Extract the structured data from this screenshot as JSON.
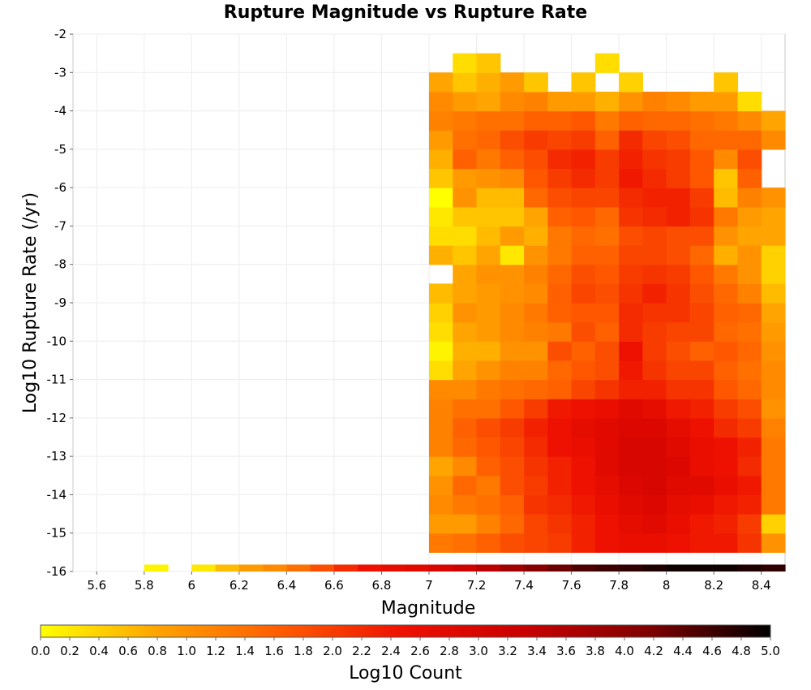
{
  "chart_data": {
    "type": "heatmap",
    "title": "Rupture Magnitude vs Rupture Rate",
    "xlabel": "Magnitude",
    "ylabel": "Log10 Rupture Rate (/yr)",
    "xlim": [
      5.5,
      8.5
    ],
    "ylim": [
      -16,
      -2
    ],
    "x_ticks": [
      "5.6",
      "5.8",
      "6",
      "6.2",
      "6.4",
      "6.6",
      "6.8",
      "7",
      "7.2",
      "7.4",
      "7.6",
      "7.8",
      "8",
      "8.2",
      "8.4"
    ],
    "y_ticks": [
      "-2",
      "-3",
      "-4",
      "-5",
      "-6",
      "-7",
      "-8",
      "-9",
      "-10",
      "-11",
      "-12",
      "-13",
      "-14",
      "-15",
      "-16"
    ],
    "colorbar": {
      "label": "Log10 Count",
      "min": 0.0,
      "max": 5.0,
      "ticks": [
        "0.0",
        "0.2",
        "0.4",
        "0.6",
        "0.8",
        "1.0",
        "1.2",
        "1.4",
        "1.6",
        "1.8",
        "2.0",
        "2.2",
        "2.4",
        "2.6",
        "2.8",
        "3.0",
        "3.2",
        "3.4",
        "3.6",
        "3.8",
        "4.0",
        "4.2",
        "4.4",
        "4.6",
        "4.8",
        "5.0"
      ],
      "colors": [
        "#ffff00",
        "#ffa000",
        "#ff5a00",
        "#ee1000",
        "#c80000",
        "#800000",
        "#000000"
      ]
    },
    "x_bins": [
      7.0,
      7.1,
      7.2,
      7.3,
      7.4,
      7.5,
      7.6,
      7.7,
      7.8,
      7.9,
      8.0,
      8.1,
      8.2,
      8.3,
      8.4
    ],
    "y_bin_width": 0.5,
    "bottom_row": {
      "x": [
        5.8,
        6.0,
        6.1,
        6.2,
        6.3,
        6.4,
        6.5,
        6.6,
        6.7,
        6.8,
        6.9,
        7.0,
        7.1,
        7.2,
        7.3,
        7.4,
        7.5,
        7.6,
        7.7,
        7.8,
        7.9,
        8.0,
        8.1,
        8.2,
        8.3,
        8.4
      ],
      "y": -16,
      "values": [
        0.1,
        0.2,
        0.6,
        0.9,
        1.1,
        1.4,
        1.8,
        2.2,
        2.5,
        2.7,
        2.8,
        3.0,
        3.2,
        3.5,
        3.8,
        4.1,
        4.3,
        4.5,
        4.6,
        4.7,
        4.8,
        4.9,
        4.9,
        4.9,
        4.8,
        4.7
      ]
    },
    "cells": [
      {
        "x": 7.0,
        "y_values": [
          -15.5,
          -15,
          -14.5,
          -14,
          -13.5,
          -13,
          -12.5,
          -12,
          -11.5,
          -11,
          -10.5,
          -10,
          -9.5,
          -9,
          -8,
          -7.5,
          -7,
          -6.5,
          -6,
          -5.5,
          -5,
          -4.5,
          -4,
          -3.5
        ],
        "values": [
          1.3,
          0.9,
          1.1,
          1.0,
          0.8,
          1.2,
          1.2,
          1.2,
          1.1,
          0.3,
          0.1,
          0.3,
          0.4,
          0.6,
          0.7,
          0.3,
          0.2,
          0.0,
          0.5,
          0.7,
          0.9,
          1.2,
          1.1,
          0.8
        ]
      },
      {
        "x": 7.1,
        "y_values": [
          -15.5,
          -15,
          -14.5,
          -14,
          -13.5,
          -13,
          -12.5,
          -12,
          -11.5,
          -11,
          -10.5,
          -10,
          -9.5,
          -9,
          -8.5,
          -8,
          -7.5,
          -7,
          -6.5,
          -6,
          -5.5,
          -5,
          -4.5,
          -4,
          -3.5,
          -3
        ],
        "values": [
          1.4,
          0.9,
          1.3,
          1.5,
          1.1,
          1.5,
          1.6,
          1.4,
          1.1,
          0.8,
          0.7,
          0.8,
          1.0,
          0.8,
          0.8,
          0.5,
          0.3,
          0.5,
          1.0,
          0.9,
          1.6,
          1.4,
          1.3,
          0.9,
          0.5,
          0.3
        ]
      },
      {
        "x": 7.2,
        "y_values": [
          -15.5,
          -15,
          -14.5,
          -14,
          -13.5,
          -13,
          -12.5,
          -12,
          -11.5,
          -11,
          -10.5,
          -10,
          -9.5,
          -9,
          -8.5,
          -8,
          -7.5,
          -7,
          -6.5,
          -6,
          -5.5,
          -5,
          -4.5,
          -4,
          -3.5,
          -3
        ],
        "values": [
          1.6,
          1.2,
          1.4,
          1.3,
          1.6,
          1.7,
          1.8,
          1.4,
          1.3,
          1.0,
          0.7,
          0.9,
          0.9,
          0.9,
          1.0,
          0.8,
          0.6,
          0.5,
          0.6,
          1.0,
          1.3,
          1.5,
          1.4,
          0.8,
          0.7,
          0.5
        ]
      },
      {
        "x": 7.3,
        "y_values": [
          -15.5,
          -15,
          -14.5,
          -14,
          -13.5,
          -13,
          -12.5,
          -12,
          -11.5,
          -11,
          -10.5,
          -10,
          -9.5,
          -9,
          -8.5,
          -8,
          -7.5,
          -7,
          -6.5,
          -6,
          -5.5,
          -5,
          -4.5,
          -4,
          -3.5
        ],
        "values": [
          1.8,
          1.5,
          1.6,
          1.8,
          1.8,
          1.9,
          2.0,
          1.7,
          1.4,
          1.2,
          1.0,
          1.1,
          1.1,
          1.0,
          1.0,
          0.2,
          0.9,
          0.5,
          0.6,
          1.1,
          1.6,
          1.8,
          1.4,
          1.1,
          0.9
        ]
      },
      {
        "x": 7.4,
        "y_values": [
          -15.5,
          -15,
          -14.5,
          -14,
          -13.5,
          -13,
          -12.5,
          -12,
          -11.5,
          -11,
          -10.5,
          -10,
          -9.5,
          -9,
          -8.5,
          -8,
          -7.5,
          -7,
          -6.5,
          -6,
          -5.5,
          -5,
          -4.5,
          -4,
          -3.5
        ],
        "values": [
          1.9,
          1.9,
          2.1,
          2.0,
          2.1,
          2.2,
          2.3,
          2.0,
          1.5,
          1.2,
          1.0,
          1.2,
          1.3,
          1.1,
          1.2,
          1.0,
          0.7,
          0.8,
          1.5,
          1.7,
          1.8,
          2.0,
          1.6,
          1.2,
          0.5
        ]
      },
      {
        "x": 7.5,
        "y_values": [
          -15.5,
          -15,
          -14.5,
          -14,
          -13.5,
          -13,
          -12.5,
          -12,
          -11.5,
          -11,
          -10.5,
          -10,
          -9.5,
          -9,
          -8.5,
          -8,
          -7.5,
          -7,
          -6.5,
          -6,
          -5.5,
          -5,
          -4.5,
          -4
        ],
        "values": [
          2.0,
          2.1,
          2.2,
          2.3,
          2.3,
          2.5,
          2.5,
          2.4,
          1.6,
          1.5,
          1.8,
          1.3,
          1.6,
          1.6,
          1.5,
          1.3,
          1.3,
          1.6,
          1.8,
          2.0,
          2.2,
          1.9,
          1.6,
          0.9
        ]
      },
      {
        "x": 7.6,
        "y_values": [
          -15.5,
          -15,
          -14.5,
          -14,
          -13.5,
          -13,
          -12.5,
          -12,
          -11.5,
          -11,
          -10.5,
          -10,
          -9.5,
          -9,
          -8.5,
          -8,
          -7.5,
          -7,
          -6.5,
          -6,
          -5.5,
          -5,
          -4.5,
          -4,
          -3.5
        ],
        "values": [
          2.3,
          2.3,
          2.4,
          2.5,
          2.5,
          2.6,
          2.7,
          2.5,
          1.9,
          1.7,
          1.6,
          1.8,
          1.7,
          1.9,
          1.8,
          1.6,
          1.5,
          1.7,
          1.9,
          2.2,
          2.3,
          2.0,
          1.7,
          0.9,
          0.5
        ]
      },
      {
        "x": 7.7,
        "y_values": [
          -15.5,
          -15,
          -14.5,
          -14,
          -13.5,
          -13,
          -12.5,
          -12,
          -11.5,
          -11,
          -10.5,
          -10,
          -9.5,
          -9,
          -8.5,
          -8,
          -7.5,
          -7,
          -6.5,
          -6,
          -5.5,
          -5,
          -4.5,
          -4,
          -3
        ],
        "values": [
          2.5,
          2.5,
          2.6,
          2.7,
          2.8,
          2.8,
          2.8,
          2.6,
          2.1,
          1.8,
          1.8,
          1.6,
          1.7,
          1.8,
          1.7,
          1.6,
          1.4,
          1.5,
          1.9,
          2.0,
          2.0,
          1.6,
          1.3,
          0.7,
          0.3
        ]
      },
      {
        "x": 7.8,
        "y_values": [
          -15.5,
          -15,
          -14.5,
          -14,
          -13.5,
          -13,
          -12.5,
          -12,
          -11.5,
          -11,
          -10.5,
          -10,
          -9.5,
          -9,
          -8.5,
          -8,
          -7.5,
          -7,
          -6.5,
          -6,
          -5.5,
          -5,
          -4.5,
          -4,
          -3.5
        ],
        "values": [
          2.6,
          2.7,
          2.8,
          2.9,
          3.0,
          3.0,
          2.9,
          2.8,
          2.3,
          2.4,
          2.5,
          2.2,
          2.2,
          2.1,
          2.0,
          1.9,
          1.8,
          2.1,
          2.2,
          2.4,
          2.3,
          2.2,
          1.6,
          1.0,
          0.4
        ]
      },
      {
        "x": 7.9,
        "y_values": [
          -15.5,
          -15,
          -14.5,
          -14,
          -13.5,
          -13,
          -12.5,
          -12,
          -11.5,
          -11,
          -10.5,
          -10,
          -9.5,
          -9,
          -8.5,
          -8,
          -7.5,
          -7,
          -6.5,
          -6,
          -5.5,
          -5,
          -4.5,
          -4
        ],
        "values": [
          2.6,
          2.8,
          2.9,
          3.0,
          3.0,
          3.0,
          2.9,
          2.7,
          2.3,
          2.1,
          2.0,
          2.0,
          2.1,
          2.3,
          2.1,
          1.9,
          1.9,
          2.2,
          2.3,
          2.2,
          2.1,
          1.9,
          1.5,
          1.2
        ]
      },
      {
        "x": 8.0,
        "y_values": [
          -15.5,
          -15,
          -14.5,
          -14,
          -13.5,
          -13,
          -12.5,
          -12,
          -11.5,
          -11,
          -10.5,
          -10,
          -9.5,
          -9,
          -8.5,
          -8,
          -7.5,
          -7,
          -6.5,
          -6,
          -5.5,
          -5,
          -4.5,
          -4
        ],
        "values": [
          2.5,
          2.6,
          2.7,
          2.8,
          2.9,
          2.8,
          2.7,
          2.4,
          2.1,
          1.9,
          1.8,
          1.9,
          2.1,
          2.1,
          2.0,
          1.8,
          1.8,
          2.3,
          2.3,
          2.0,
          2.0,
          1.8,
          1.5,
          1.1
        ]
      },
      {
        "x": 8.1,
        "y_values": [
          -15.5,
          -15,
          -14.5,
          -14,
          -13.5,
          -13,
          -12.5,
          -12,
          -11.5,
          -11,
          -10.5,
          -10,
          -9.5,
          -9,
          -8.5,
          -8,
          -7.5,
          -7,
          -6.5,
          -6,
          -5.5,
          -5,
          -4.5,
          -4
        ],
        "values": [
          2.4,
          2.4,
          2.6,
          2.8,
          2.6,
          2.6,
          2.5,
          2.3,
          2.1,
          1.9,
          1.6,
          1.9,
          1.9,
          1.8,
          1.7,
          1.5,
          1.8,
          2.1,
          2.0,
          1.7,
          1.7,
          1.5,
          1.4,
          0.9
        ]
      },
      {
        "x": 8.2,
        "y_values": [
          -15.5,
          -15,
          -14.5,
          -14,
          -13.5,
          -13,
          -12.5,
          -12,
          -11.5,
          -11,
          -10.5,
          -10,
          -9.5,
          -9,
          -8.5,
          -8,
          -7.5,
          -7,
          -6.5,
          -6,
          -5.5,
          -5,
          -4.5,
          -4,
          -3.5
        ],
        "values": [
          2.4,
          2.3,
          2.4,
          2.6,
          2.5,
          2.5,
          2.2,
          2.0,
          1.7,
          1.6,
          1.7,
          1.5,
          1.6,
          1.5,
          1.3,
          0.7,
          1.0,
          1.3,
          0.6,
          0.5,
          1.1,
          1.5,
          1.3,
          0.9,
          0.5
        ]
      },
      {
        "x": 8.3,
        "y_values": [
          -15.5,
          -15,
          -14.5,
          -14,
          -13.5,
          -13,
          -12.5,
          -12,
          -11.5,
          -11,
          -10.5,
          -10,
          -9.5,
          -9,
          -8.5,
          -8,
          -7.5,
          -7,
          -6.5,
          -6,
          -5.5,
          -5,
          -4.5,
          -4
        ],
        "values": [
          2.1,
          2.0,
          2.3,
          2.4,
          2.2,
          2.3,
          2.0,
          1.8,
          1.5,
          1.4,
          1.5,
          1.4,
          1.5,
          1.2,
          1.0,
          1.0,
          0.8,
          0.9,
          1.2,
          1.6,
          1.8,
          1.5,
          1.1,
          0.3
        ]
      },
      {
        "x": 8.4,
        "y_values": [
          -15.5,
          -15,
          -14.5,
          -14,
          -13.5,
          -13,
          -12.5,
          -12,
          -11.5,
          -11,
          -10.5,
          -10,
          -9.5,
          -9,
          -8.5,
          -8,
          -7.5,
          -7,
          -6.5,
          -5,
          -4.5
        ],
        "values": [
          1.0,
          0.4,
          1.3,
          1.3,
          1.3,
          1.3,
          1.2,
          1.0,
          1.1,
          1.1,
          1.0,
          0.9,
          0.8,
          0.6,
          0.4,
          0.4,
          0.8,
          0.8,
          1.0,
          1.1,
          0.8
        ]
      }
    ]
  }
}
